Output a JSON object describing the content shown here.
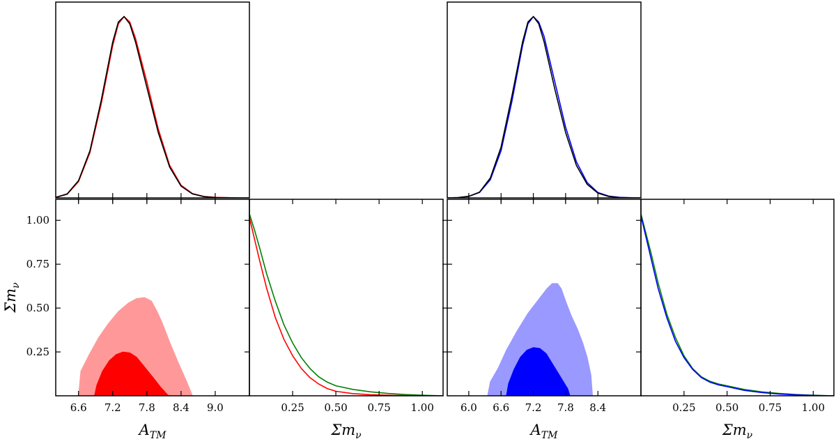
{
  "chart_data": [
    {
      "type": "line",
      "panel": "left-top",
      "xlabel": "",
      "ylabel": "",
      "xlim": [
        6.2,
        9.6
      ],
      "series": [
        {
          "color": "#ff0000",
          "x": [
            6.2,
            6.4,
            6.6,
            6.8,
            7.0,
            7.2,
            7.3,
            7.4,
            7.5,
            7.6,
            7.8,
            8.0,
            8.2,
            8.4,
            8.6,
            8.8,
            9.0,
            9.2,
            9.4,
            9.6
          ],
          "y": [
            0.003,
            0.02,
            0.09,
            0.25,
            0.52,
            0.84,
            0.96,
            1.0,
            0.97,
            0.88,
            0.64,
            0.38,
            0.18,
            0.07,
            0.024,
            0.008,
            0.003,
            0.001,
            0.0,
            0.0
          ]
        },
        {
          "color": "#000000",
          "x": [
            6.2,
            6.4,
            6.6,
            6.8,
            7.0,
            7.2,
            7.3,
            7.4,
            7.5,
            7.6,
            7.8,
            8.0,
            8.2,
            8.4,
            8.6,
            8.8,
            9.0,
            9.2,
            9.4,
            9.6
          ],
          "y": [
            0.003,
            0.022,
            0.095,
            0.26,
            0.54,
            0.86,
            0.97,
            1.0,
            0.96,
            0.86,
            0.61,
            0.36,
            0.17,
            0.065,
            0.022,
            0.007,
            0.002,
            0.001,
            0.0,
            0.0
          ]
        }
      ]
    },
    {
      "type": "area",
      "panel": "left-bottom",
      "xlabel": "A_TM",
      "ylabel": "Σm_ν",
      "xlim": [
        6.2,
        9.6
      ],
      "ylim": [
        0.0,
        1.12
      ],
      "xticks": [
        "6.6",
        "7.2",
        "7.8",
        "8.4",
        "9.0"
      ],
      "yticks": [
        "0.25",
        "0.50",
        "0.75",
        "1.00"
      ],
      "regions": [
        {
          "level": "95%",
          "color": "#ff9999",
          "x": [
            6.6,
            6.64,
            6.78,
            6.95,
            7.12,
            7.3,
            7.48,
            7.62,
            7.76,
            7.88,
            7.98,
            8.05,
            8.1,
            8.22,
            8.35,
            8.5,
            8.6
          ],
          "y": [
            0.0,
            0.14,
            0.23,
            0.33,
            0.41,
            0.48,
            0.53,
            0.555,
            0.56,
            0.54,
            0.48,
            0.43,
            0.39,
            0.29,
            0.19,
            0.08,
            0.0
          ]
        },
        {
          "level": "68%",
          "color": "#ff0000",
          "x": [
            6.88,
            6.92,
            7.02,
            7.14,
            7.26,
            7.38,
            7.5,
            7.62,
            7.72,
            7.82,
            7.92,
            8.04,
            8.18
          ],
          "y": [
            0.0,
            0.06,
            0.14,
            0.2,
            0.235,
            0.25,
            0.245,
            0.22,
            0.18,
            0.14,
            0.1,
            0.05,
            0.0
          ]
        }
      ]
    },
    {
      "type": "line",
      "panel": "left-right",
      "xlabel": "Σm_ν",
      "ylabel": "",
      "xlim": [
        0.0,
        1.12
      ],
      "xticks": [
        "0.25",
        "0.50",
        "0.75",
        "1.00"
      ],
      "series": [
        {
          "color": "#008000",
          "x": [
            0.0,
            0.03,
            0.06,
            0.1,
            0.15,
            0.2,
            0.25,
            0.3,
            0.35,
            0.4,
            0.45,
            0.5,
            0.6,
            0.7,
            0.8,
            0.9,
            1.0,
            1.12
          ],
          "y": [
            1.0,
            0.91,
            0.81,
            0.67,
            0.52,
            0.39,
            0.29,
            0.21,
            0.15,
            0.105,
            0.075,
            0.055,
            0.035,
            0.022,
            0.013,
            0.007,
            0.003,
            0.0
          ]
        },
        {
          "color": "#ff0000",
          "x": [
            0.0,
            0.03,
            0.06,
            0.1,
            0.15,
            0.2,
            0.25,
            0.3,
            0.35,
            0.4,
            0.45,
            0.5,
            0.6,
            0.7,
            0.8,
            0.9,
            1.0,
            1.12
          ],
          "y": [
            0.98,
            0.86,
            0.74,
            0.59,
            0.43,
            0.31,
            0.22,
            0.15,
            0.1,
            0.065,
            0.04,
            0.025,
            0.012,
            0.006,
            0.003,
            0.001,
            0.0,
            0.0
          ]
        }
      ]
    },
    {
      "type": "line",
      "panel": "right-top",
      "xlabel": "",
      "ylabel": "",
      "xlim": [
        5.6,
        9.2
      ],
      "series": [
        {
          "color": "#0000ff",
          "x": [
            5.6,
            5.8,
            6.0,
            6.2,
            6.4,
            6.6,
            6.8,
            7.0,
            7.1,
            7.2,
            7.3,
            7.4,
            7.6,
            7.8,
            8.0,
            8.2,
            8.4,
            8.6,
            8.8,
            9.0,
            9.2
          ],
          "y": [
            0.0,
            0.002,
            0.008,
            0.03,
            0.1,
            0.26,
            0.53,
            0.84,
            0.96,
            1.0,
            0.97,
            0.89,
            0.64,
            0.39,
            0.2,
            0.085,
            0.03,
            0.01,
            0.003,
            0.001,
            0.0
          ]
        },
        {
          "color": "#000000",
          "x": [
            5.6,
            5.8,
            6.0,
            6.2,
            6.4,
            6.6,
            6.8,
            7.0,
            7.1,
            7.2,
            7.3,
            7.4,
            7.6,
            7.8,
            8.0,
            8.2,
            8.4,
            8.6,
            8.8,
            9.0,
            9.2
          ],
          "y": [
            0.0,
            0.002,
            0.009,
            0.032,
            0.11,
            0.28,
            0.56,
            0.86,
            0.97,
            1.0,
            0.96,
            0.86,
            0.6,
            0.36,
            0.18,
            0.075,
            0.026,
            0.008,
            0.002,
            0.0,
            0.0
          ]
        }
      ]
    },
    {
      "type": "area",
      "panel": "right-bottom",
      "xlabel": "A_TM",
      "ylabel": "",
      "xlim": [
        5.6,
        9.2
      ],
      "ylim": [
        0.0,
        1.12
      ],
      "xticks": [
        "6.0",
        "6.6",
        "7.2",
        "7.8",
        "8.4"
      ],
      "regions": [
        {
          "level": "95%",
          "color": "#9999ff",
          "x": [
            6.35,
            6.4,
            6.55,
            6.7,
            6.9,
            7.1,
            7.3,
            7.45,
            7.55,
            7.65,
            7.72,
            7.8,
            7.9,
            8.02,
            8.12,
            8.2,
            8.27,
            8.3
          ],
          "y": [
            0.0,
            0.08,
            0.16,
            0.26,
            0.37,
            0.47,
            0.55,
            0.61,
            0.64,
            0.64,
            0.61,
            0.54,
            0.46,
            0.38,
            0.3,
            0.22,
            0.12,
            0.0
          ]
        },
        {
          "level": "68%",
          "color": "#0000ff",
          "x": [
            6.7,
            6.74,
            6.84,
            6.96,
            7.08,
            7.2,
            7.32,
            7.44,
            7.56,
            7.66,
            7.76,
            7.84,
            7.88
          ],
          "y": [
            0.0,
            0.07,
            0.15,
            0.22,
            0.26,
            0.275,
            0.27,
            0.24,
            0.18,
            0.13,
            0.08,
            0.04,
            0.0
          ]
        }
      ]
    },
    {
      "type": "line",
      "panel": "right-right",
      "xlabel": "Σm_ν",
      "ylabel": "",
      "xlim": [
        0.0,
        1.12
      ],
      "xticks": [
        "0.25",
        "0.50",
        "0.75",
        "1.00"
      ],
      "series": [
        {
          "color": "#008000",
          "x": [
            0.0,
            0.03,
            0.06,
            0.1,
            0.15,
            0.2,
            0.25,
            0.3,
            0.35,
            0.4,
            0.45,
            0.5,
            0.6,
            0.7,
            0.8,
            0.9,
            1.0,
            1.12
          ],
          "y": [
            1.0,
            0.89,
            0.78,
            0.62,
            0.45,
            0.32,
            0.22,
            0.15,
            0.105,
            0.08,
            0.065,
            0.055,
            0.035,
            0.022,
            0.013,
            0.007,
            0.003,
            0.0
          ]
        },
        {
          "color": "#0000ff",
          "x": [
            0.0,
            0.03,
            0.06,
            0.1,
            0.15,
            0.2,
            0.25,
            0.3,
            0.35,
            0.4,
            0.45,
            0.5,
            0.6,
            0.7,
            0.8,
            0.9,
            1.0,
            1.12
          ],
          "y": [
            0.99,
            0.87,
            0.75,
            0.59,
            0.43,
            0.3,
            0.21,
            0.145,
            0.1,
            0.075,
            0.06,
            0.05,
            0.03,
            0.018,
            0.01,
            0.005,
            0.002,
            0.0
          ]
        }
      ]
    }
  ]
}
